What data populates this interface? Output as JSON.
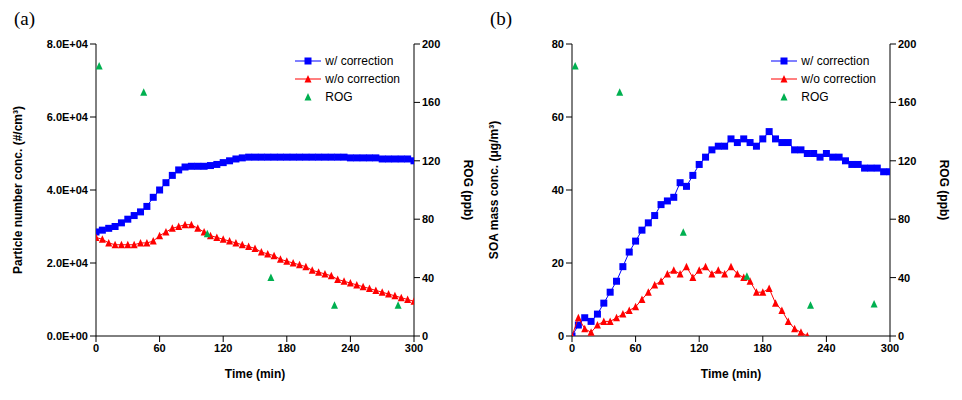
{
  "chart_data": [
    {
      "type": "line",
      "title": "(a)",
      "x_label": "Time (min)",
      "y_label": "Particle number conc. (#/cm³)",
      "y2_label": "ROG (ppb)",
      "xlim": [
        0,
        300
      ],
      "xticks": [
        0,
        60,
        120,
        180,
        240,
        300
      ],
      "ylim": [
        0,
        80000
      ],
      "yticks": [
        {
          "value": 0,
          "label": "0.0E+00"
        },
        {
          "value": 20000,
          "label": "2.0E+04"
        },
        {
          "value": 40000,
          "label": "4.0E+04"
        },
        {
          "value": 60000,
          "label": "6.0E+04"
        },
        {
          "value": 80000,
          "label": "8.0E+04"
        }
      ],
      "y2lim": [
        0,
        200
      ],
      "y2ticks": [
        0,
        40,
        80,
        120,
        160,
        200
      ],
      "grid": false,
      "legend": "upper right",
      "series": [
        {
          "name": "w/ correction",
          "color": "#0000ff",
          "marker": "square",
          "line_style": "solid",
          "x": [
            0,
            6,
            12,
            18,
            24,
            30,
            36,
            42,
            48,
            54,
            60,
            66,
            72,
            78,
            84,
            90,
            96,
            102,
            108,
            114,
            120,
            126,
            132,
            138,
            144,
            150,
            156,
            162,
            168,
            174,
            180,
            186,
            192,
            198,
            204,
            210,
            216,
            222,
            228,
            234,
            240,
            246,
            252,
            258,
            264,
            270,
            276,
            282,
            288,
            294,
            300
          ],
          "values": [
            28500,
            29000,
            29500,
            30000,
            31000,
            32000,
            33000,
            34000,
            35500,
            38000,
            40000,
            42000,
            44000,
            45500,
            46300,
            46500,
            46500,
            46500,
            46700,
            47000,
            47500,
            48000,
            48500,
            48800,
            49000,
            49000,
            49000,
            49000,
            49000,
            49000,
            49000,
            49000,
            49000,
            49000,
            49000,
            49000,
            49000,
            49000,
            49000,
            49000,
            48800,
            48800,
            48800,
            48800,
            48800,
            48500,
            48500,
            48500,
            48500,
            48500,
            48000
          ]
        },
        {
          "name": "w/o correction",
          "color": "#ff0000",
          "marker": "triangle",
          "line_style": "solid",
          "x": [
            0,
            6,
            12,
            18,
            24,
            30,
            36,
            42,
            48,
            54,
            60,
            66,
            72,
            78,
            84,
            90,
            96,
            102,
            108,
            114,
            120,
            126,
            132,
            138,
            144,
            150,
            156,
            162,
            168,
            174,
            180,
            186,
            192,
            198,
            204,
            210,
            216,
            222,
            228,
            234,
            240,
            246,
            252,
            258,
            264,
            270,
            276,
            282,
            288,
            294,
            300
          ],
          "values": [
            27000,
            26500,
            25500,
            25000,
            25000,
            25000,
            25000,
            25500,
            25500,
            26000,
            27500,
            28500,
            29500,
            30000,
            30500,
            30500,
            29500,
            28500,
            27500,
            27000,
            26500,
            26000,
            25500,
            25000,
            24500,
            24000,
            23000,
            22500,
            22000,
            21000,
            20500,
            20000,
            19500,
            19000,
            18000,
            17500,
            17000,
            16500,
            15500,
            15000,
            14500,
            14000,
            13500,
            13000,
            12500,
            12000,
            11500,
            11000,
            10500,
            10000,
            9500
          ]
        },
        {
          "name": "ROG",
          "color": "#00b050",
          "marker": "triangle",
          "line_style": "none",
          "axis": "y2",
          "x": [
            3,
            45,
            105,
            165,
            225,
            285
          ],
          "values": [
            185,
            167,
            70,
            40,
            21,
            21
          ]
        }
      ]
    },
    {
      "type": "line",
      "title": "(b)",
      "x_label": "Time (min)",
      "y_label": "SOA mass conc. (μg/m³)",
      "y2_label": "ROG (ppb)",
      "xlim": [
        0,
        300
      ],
      "xticks": [
        0,
        60,
        120,
        180,
        240,
        300
      ],
      "ylim": [
        0,
        80
      ],
      "yticks": [
        0,
        20,
        40,
        60,
        80
      ],
      "y2lim": [
        0,
        200
      ],
      "y2ticks": [
        0,
        40,
        80,
        120,
        160,
        200
      ],
      "grid": false,
      "legend": "upper right",
      "series": [
        {
          "name": "w/ correction",
          "color": "#0000ff",
          "marker": "square",
          "line_style": "solid",
          "x": [
            0,
            6,
            12,
            18,
            24,
            30,
            36,
            42,
            48,
            54,
            60,
            66,
            72,
            78,
            84,
            90,
            96,
            102,
            108,
            114,
            120,
            126,
            132,
            138,
            144,
            150,
            156,
            162,
            168,
            174,
            180,
            186,
            192,
            198,
            204,
            210,
            216,
            222,
            228,
            234,
            240,
            246,
            252,
            258,
            264,
            270,
            276,
            282,
            288,
            294,
            300
          ],
          "values": [
            0,
            3,
            5,
            4,
            6,
            9,
            12,
            15,
            19,
            23,
            26,
            29,
            31,
            33,
            36,
            37,
            38,
            42,
            41,
            44,
            47,
            49,
            51,
            52,
            52,
            54,
            53,
            54,
            53,
            52,
            54,
            56,
            54,
            53,
            53,
            51,
            51,
            50,
            50,
            49,
            50,
            49,
            49,
            48,
            47,
            47,
            46,
            46,
            46,
            45,
            45
          ]
        },
        {
          "name": "w/o correction",
          "color": "#ff0000",
          "marker": "triangle",
          "line_style": "solid",
          "x": [
            0,
            6,
            12,
            18,
            24,
            30,
            36,
            42,
            48,
            54,
            60,
            66,
            72,
            78,
            84,
            90,
            96,
            102,
            108,
            114,
            120,
            126,
            132,
            138,
            144,
            150,
            156,
            162,
            168,
            174,
            180,
            186,
            192,
            198,
            204,
            210,
            216,
            222
          ],
          "values": [
            0,
            5,
            2,
            1,
            3,
            4,
            4,
            5,
            6,
            7,
            8,
            10,
            12,
            14,
            15,
            17,
            18,
            17,
            19,
            16,
            18,
            19,
            17,
            18,
            17,
            19,
            17,
            16,
            15,
            12,
            12,
            13,
            9,
            7,
            4,
            2,
            1,
            0
          ]
        },
        {
          "name": "ROG",
          "color": "#00b050",
          "marker": "triangle",
          "line_style": "none",
          "axis": "y2",
          "x": [
            3,
            45,
            105,
            165,
            225,
            285
          ],
          "values": [
            185,
            167,
            71,
            41,
            21,
            22
          ]
        }
      ]
    }
  ]
}
